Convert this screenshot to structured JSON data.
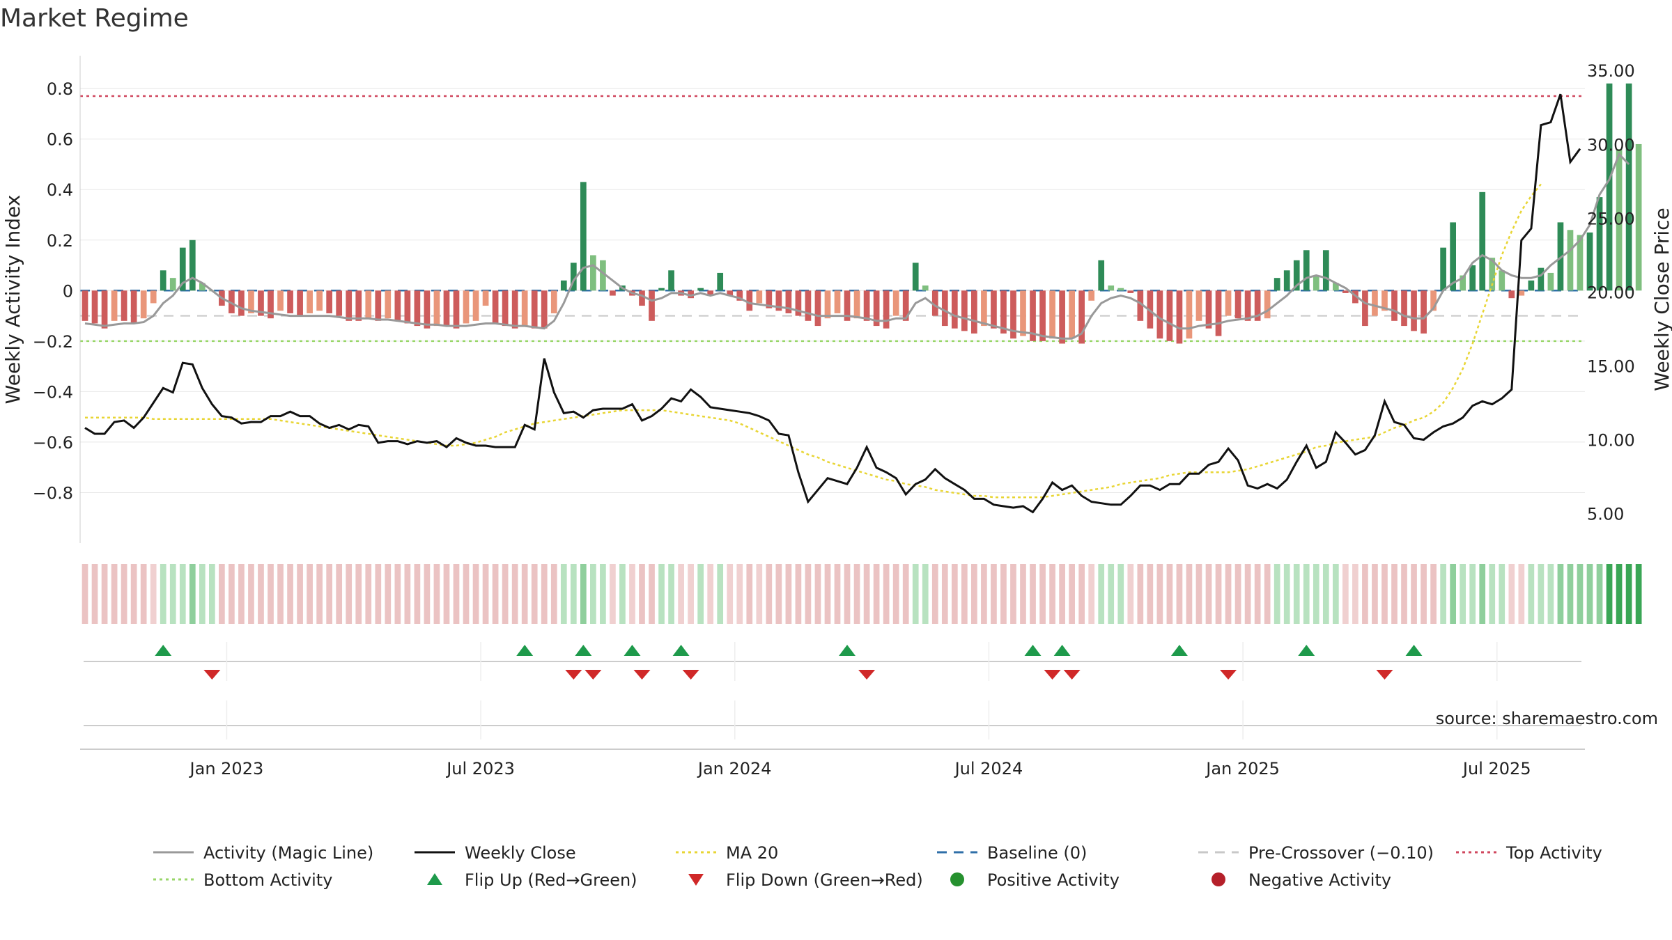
{
  "title": "Market Regime",
  "source": "source: sharemaestro.com",
  "chart_data": {
    "type": "bar",
    "weeks": 154,
    "x_ticks": [
      "Jan 2023",
      "Jul 2023",
      "Jan 2024",
      "Jul 2024",
      "Jan 2025",
      "Jul 2025"
    ],
    "x_tick_weeks": [
      15,
      41,
      67,
      93,
      119,
      145
    ],
    "y_left": {
      "label": "Weekly Activity Index",
      "lim": [
        -1.0,
        0.93
      ],
      "ticks": [
        "0.8",
        "0.6",
        "0.4",
        "0.2",
        "0",
        "−0.2",
        "−0.4",
        "−0.6",
        "−0.8"
      ],
      "tick_values": [
        0.8,
        0.6,
        0.4,
        0.2,
        0,
        -0.2,
        -0.4,
        -0.6,
        -0.8
      ]
    },
    "y_right": {
      "label": "Weekly Close Price",
      "lim": [
        3.0,
        36.0
      ],
      "ticks": [
        "35.00",
        "30.00",
        "25.00",
        "20.00",
        "15.00",
        "10.00",
        "5.00"
      ],
      "tick_values": [
        35,
        30,
        25,
        20,
        15,
        10,
        5
      ]
    },
    "reference_lines": {
      "top_activity": 0.77,
      "bottom_activity": -0.2,
      "baseline": 0,
      "pre_crossover": -0.1
    },
    "activity": [
      -0.12,
      -0.13,
      -0.15,
      -0.12,
      -0.12,
      -0.13,
      -0.11,
      -0.05,
      0.08,
      0.05,
      0.17,
      0.2,
      0.03,
      0,
      -0.06,
      -0.09,
      -0.1,
      -0.09,
      -0.1,
      -0.11,
      -0.08,
      -0.09,
      -0.1,
      -0.09,
      -0.08,
      -0.09,
      -0.1,
      -0.12,
      -0.12,
      -0.11,
      -0.12,
      -0.11,
      -0.12,
      -0.13,
      -0.14,
      -0.15,
      -0.14,
      -0.14,
      -0.15,
      -0.13,
      -0.12,
      -0.06,
      -0.13,
      -0.14,
      -0.15,
      -0.14,
      -0.15,
      -0.15,
      -0.09,
      0.04,
      0.11,
      0.43,
      0.14,
      0.12,
      -0.02,
      0.02,
      -0.02,
      -0.06,
      -0.12,
      0.01,
      0.08,
      -0.02,
      -0.03,
      0.01,
      -0.02,
      0.07,
      -0.02,
      -0.04,
      -0.08,
      -0.05,
      -0.07,
      -0.08,
      -0.09,
      -0.1,
      -0.12,
      -0.14,
      -0.11,
      -0.09,
      -0.12,
      -0.11,
      -0.12,
      -0.14,
      -0.15,
      -0.1,
      -0.12,
      0.11,
      0.02,
      -0.1,
      -0.14,
      -0.15,
      -0.16,
      -0.17,
      -0.14,
      -0.15,
      -0.17,
      -0.19,
      -0.18,
      -0.2,
      -0.2,
      -0.19,
      -0.21,
      -0.19,
      -0.21,
      -0.04,
      0.12,
      0.02,
      0.01,
      -0.01,
      -0.12,
      -0.15,
      -0.19,
      -0.2,
      -0.21,
      -0.19,
      -0.12,
      -0.15,
      -0.18,
      -0.1,
      -0.11,
      -0.12,
      -0.12,
      -0.11,
      0.05,
      0.08,
      0.12,
      0.16,
      0.06,
      0.16,
      0.03,
      -0.01,
      -0.05,
      -0.14,
      -0.1,
      -0.08,
      -0.12,
      -0.14,
      -0.16,
      -0.17,
      -0.08,
      0.17,
      0.27,
      0.06,
      0.1,
      0.39,
      0.13,
      0.08,
      -0.03,
      -0.02,
      0.04,
      0.09,
      0.07,
      0.27,
      0.24,
      0.22,
      0.23,
      0.37,
      0.82,
      0.56,
      0.82,
      0.58
    ],
    "magic_line": [
      -0.13,
      -0.135,
      -0.14,
      -0.135,
      -0.13,
      -0.13,
      -0.125,
      -0.1,
      -0.05,
      -0.02,
      0.03,
      0.05,
      0.03,
      0.0,
      -0.03,
      -0.05,
      -0.07,
      -0.08,
      -0.085,
      -0.09,
      -0.095,
      -0.1,
      -0.1,
      -0.1,
      -0.1,
      -0.1,
      -0.105,
      -0.11,
      -0.11,
      -0.11,
      -0.115,
      -0.115,
      -0.12,
      -0.125,
      -0.13,
      -0.135,
      -0.135,
      -0.14,
      -0.14,
      -0.14,
      -0.135,
      -0.13,
      -0.13,
      -0.135,
      -0.14,
      -0.14,
      -0.145,
      -0.15,
      -0.12,
      -0.05,
      0.04,
      0.09,
      0.1,
      0.07,
      0.04,
      0.01,
      -0.01,
      -0.02,
      -0.04,
      -0.03,
      -0.01,
      -0.01,
      -0.02,
      -0.01,
      -0.02,
      -0.01,
      -0.02,
      -0.03,
      -0.05,
      -0.055,
      -0.06,
      -0.065,
      -0.07,
      -0.08,
      -0.09,
      -0.1,
      -0.1,
      -0.1,
      -0.1,
      -0.105,
      -0.11,
      -0.12,
      -0.12,
      -0.11,
      -0.11,
      -0.05,
      -0.03,
      -0.06,
      -0.08,
      -0.1,
      -0.11,
      -0.12,
      -0.13,
      -0.14,
      -0.15,
      -0.16,
      -0.165,
      -0.17,
      -0.18,
      -0.185,
      -0.19,
      -0.19,
      -0.17,
      -0.1,
      -0.05,
      -0.03,
      -0.02,
      -0.03,
      -0.05,
      -0.08,
      -0.11,
      -0.13,
      -0.15,
      -0.15,
      -0.14,
      -0.135,
      -0.13,
      -0.12,
      -0.115,
      -0.11,
      -0.1,
      -0.08,
      -0.05,
      -0.02,
      0.02,
      0.05,
      0.06,
      0.05,
      0.03,
      0.01,
      -0.02,
      -0.05,
      -0.06,
      -0.07,
      -0.08,
      -0.1,
      -0.11,
      -0.11,
      -0.07,
      0.0,
      0.03,
      0.05,
      0.11,
      0.14,
      0.12,
      0.08,
      0.06,
      0.05,
      0.05,
      0.06,
      0.1,
      0.13,
      0.16,
      0.2,
      0.26,
      0.38,
      0.44,
      0.54,
      0.5
    ],
    "weekly_close": [
      10.8,
      10.4,
      10.4,
      11.2,
      11.3,
      10.8,
      11.5,
      12.5,
      13.5,
      13.2,
      15.2,
      15.1,
      13.5,
      12.4,
      11.6,
      11.5,
      11.1,
      11.2,
      11.2,
      11.6,
      11.6,
      11.9,
      11.6,
      11.6,
      11.1,
      10.8,
      11.0,
      10.7,
      11.0,
      10.9,
      9.8,
      9.9,
      9.9,
      9.7,
      9.9,
      9.8,
      9.9,
      9.5,
      10.1,
      9.8,
      9.6,
      9.6,
      9.5,
      9.5,
      9.5,
      11.0,
      10.7,
      15.5,
      13.2,
      11.8,
      11.9,
      11.5,
      12.0,
      12.1,
      12.1,
      12.1,
      12.4,
      11.3,
      11.6,
      12.1,
      12.8,
      12.6,
      13.4,
      12.9,
      12.2,
      12.1,
      12.0,
      11.9,
      11.8,
      11.6,
      11.3,
      10.4,
      10.3,
      7.8,
      5.8,
      6.6,
      7.4,
      7.2,
      7.0,
      8.1,
      9.5,
      8.1,
      7.8,
      7.4,
      6.3,
      7.0,
      7.3,
      8.0,
      7.4,
      7.0,
      6.6,
      6.0,
      6.0,
      5.6,
      5.5,
      5.4,
      5.5,
      5.1,
      6.0,
      7.1,
      6.6,
      6.9,
      6.2,
      5.8,
      5.7,
      5.6,
      5.6,
      6.2,
      6.9,
      6.9,
      6.6,
      7.0,
      7.0,
      7.7,
      7.7,
      8.3,
      8.5,
      9.4,
      8.6,
      6.9,
      6.7,
      7.0,
      6.7,
      7.3,
      8.5,
      9.6,
      8.1,
      8.5,
      10.5,
      9.8,
      9.0,
      9.3,
      10.3,
      12.6,
      11.2,
      11.0,
      10.1,
      10.0,
      10.5,
      10.9,
      11.1,
      11.5,
      12.3,
      12.6,
      12.4,
      12.8,
      13.4,
      23.5,
      24.3,
      31.3,
      31.5,
      33.4,
      28.8,
      29.7
    ],
    "ma20": [
      11.5,
      11.5,
      11.5,
      11.5,
      11.5,
      11.5,
      11.5,
      11.4,
      11.4,
      11.4,
      11.4,
      11.4,
      11.4,
      11.4,
      11.4,
      11.4,
      11.4,
      11.4,
      11.4,
      11.4,
      11.3,
      11.2,
      11.1,
      11.0,
      10.9,
      10.8,
      10.7,
      10.6,
      10.5,
      10.4,
      10.3,
      10.2,
      10.1,
      10.0,
      9.9,
      9.8,
      9.7,
      9.6,
      9.6,
      9.7,
      9.8,
      10.0,
      10.2,
      10.5,
      10.7,
      10.9,
      11.1,
      11.2,
      11.3,
      11.4,
      11.5,
      11.6,
      11.7,
      11.8,
      11.9,
      12.0,
      12.0,
      12.0,
      12.0,
      12.0,
      11.9,
      11.8,
      11.7,
      11.6,
      11.5,
      11.4,
      11.3,
      11.1,
      10.8,
      10.5,
      10.2,
      9.9,
      9.6,
      9.3,
      9.0,
      8.8,
      8.5,
      8.3,
      8.1,
      7.9,
      7.7,
      7.5,
      7.3,
      7.2,
      7.0,
      6.9,
      6.8,
      6.6,
      6.5,
      6.4,
      6.3,
      6.2,
      6.2,
      6.1,
      6.1,
      6.1,
      6.1,
      6.1,
      6.1,
      6.2,
      6.3,
      6.4,
      6.5,
      6.6,
      6.7,
      6.8,
      7.0,
      7.1,
      7.2,
      7.3,
      7.4,
      7.6,
      7.7,
      7.8,
      7.8,
      7.8,
      7.8,
      7.8,
      7.9,
      8.0,
      8.2,
      8.4,
      8.6,
      8.8,
      9.0,
      9.2,
      9.5,
      9.6,
      9.8,
      9.9,
      10.0,
      10.1,
      10.2,
      10.5,
      10.8,
      11.0,
      11.3,
      11.5,
      11.9,
      12.5,
      13.5,
      14.8,
      16.5,
      18.5,
      20.5,
      22.5,
      24.1,
      25.5,
      26.5,
      27.3
    ],
    "flip_up_weeks": [
      8,
      45,
      51,
      56,
      61,
      78,
      97,
      100,
      112,
      125,
      136
    ],
    "flip_down_weeks": [
      13,
      50,
      52,
      57,
      62,
      80,
      99,
      101,
      117,
      133
    ],
    "legend": [
      {
        "label": "Activity (Magic Line)",
        "style": "solid",
        "color": "#999999"
      },
      {
        "label": "Weekly Close",
        "style": "solid",
        "color": "#111111"
      },
      {
        "label": "MA 20",
        "style": "dotted",
        "color": "#e8d534"
      },
      {
        "label": "Baseline (0)",
        "style": "dashed",
        "color": "#2f6fa8"
      },
      {
        "label": "Pre-Crossover (−0.10)",
        "style": "dashed",
        "color": "#c8c8c8"
      },
      {
        "label": "Top Activity",
        "style": "dotted",
        "color": "#d0475e"
      },
      {
        "label": "Bottom Activity",
        "style": "dotted",
        "color": "#98d668"
      },
      {
        "label": "Flip Up (Red→Green)",
        "style": "triangle-up",
        "color": "#1e9a4b"
      },
      {
        "label": "Flip Down (Green→Red)",
        "style": "triangle-down",
        "color": "#d02828"
      },
      {
        "label": "Positive Activity",
        "style": "circle",
        "color": "#26912f"
      },
      {
        "label": "Negative Activity",
        "style": "circle",
        "color": "#b5202a"
      }
    ]
  },
  "colors": {
    "pos_strong": "#2e8b57",
    "pos_light": "#7fbf7f",
    "neg_strong": "#cd5c5c",
    "neg_light": "#e9967a",
    "grid": "#e8e8e8"
  }
}
